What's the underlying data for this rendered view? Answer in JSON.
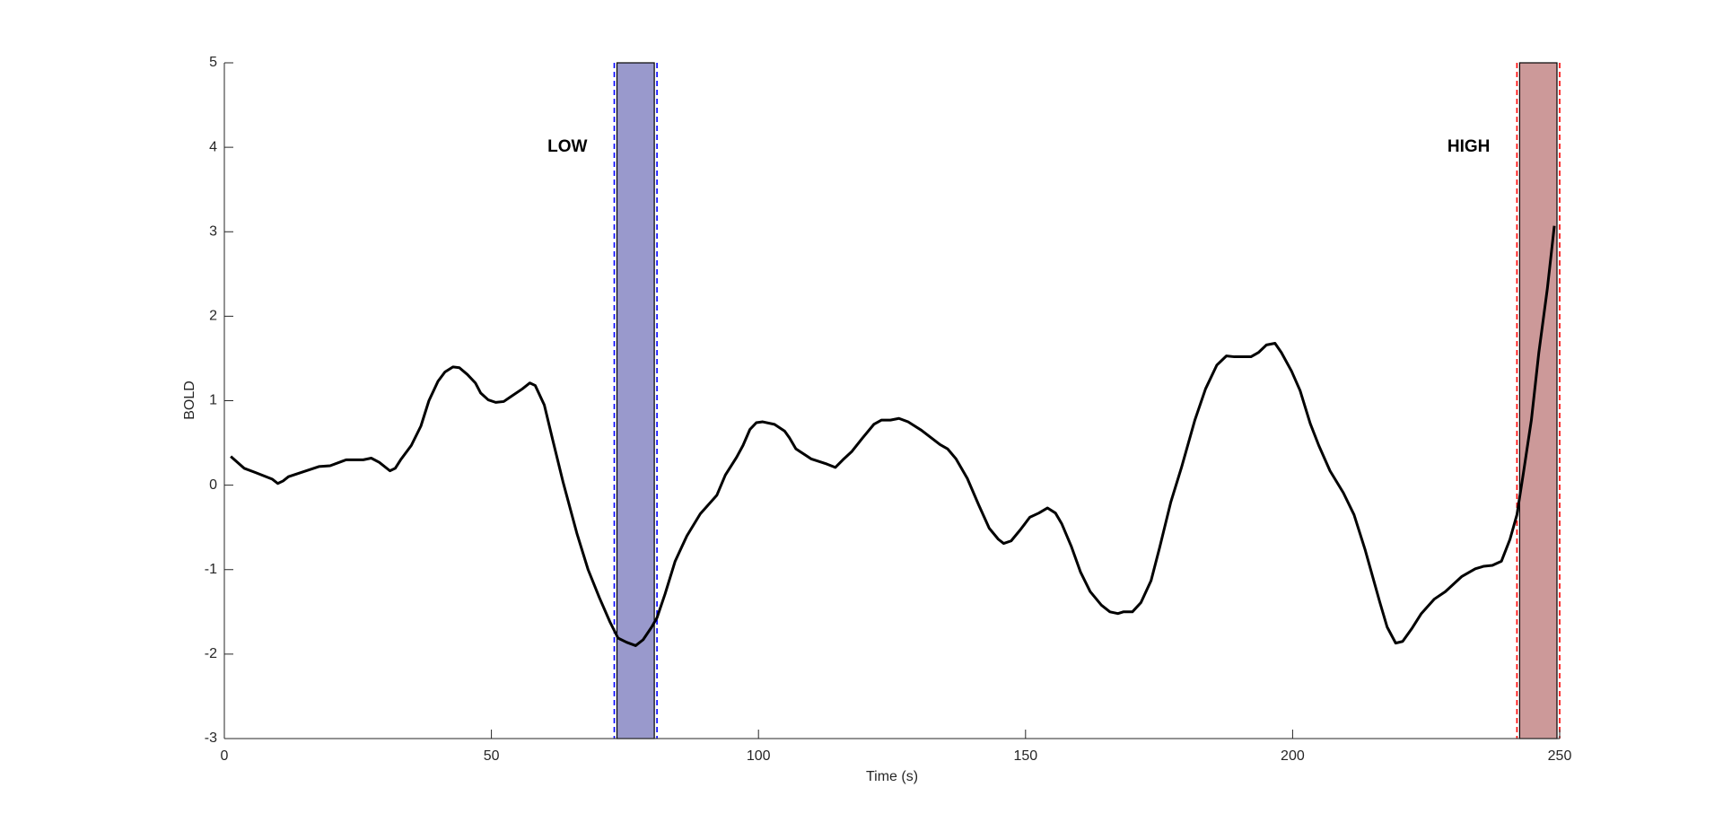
{
  "chart_data": {
    "type": "line",
    "xlabel": "Time (s)",
    "ylabel": "BOLD",
    "color": "#000000",
    "x": [
      1.2,
      3.7,
      5.8,
      9,
      10,
      11,
      12,
      17.7,
      19.8,
      22.8,
      26,
      27.5,
      29,
      31,
      32,
      33,
      35,
      36.8,
      38.3,
      40,
      41.3,
      42.8,
      44,
      45.5,
      47,
      48,
      49.4,
      50.8,
      52.3,
      53.7,
      55.8,
      57.2,
      58.2,
      59.9,
      61.5,
      63.4,
      66,
      68.1,
      70.2,
      72.2,
      73.7,
      75.3,
      77,
      78.4,
      80,
      81,
      82.5,
      84.4,
      86.6,
      89.1,
      92.2,
      93.8,
      95.9,
      97.1,
      98.4,
      99.6,
      100.8,
      103,
      104.9,
      105.8,
      107,
      109.9,
      112.8,
      114.4,
      115.8,
      117.5,
      119.5,
      121.6,
      123,
      124.7,
      126.3,
      128,
      130.5,
      134,
      135.4,
      137,
      139.1,
      141.2,
      143.2,
      144.9,
      145.9,
      147.3,
      149,
      150.8,
      152.5,
      154.1,
      155.6,
      156.8,
      158.6,
      160.3,
      162.1,
      164.2,
      165.8,
      167.3,
      168.3,
      170,
      171.6,
      173.5,
      175.1,
      177.2,
      179.2,
      181.7,
      183.7,
      185.8,
      187.6,
      189.1,
      192.2,
      193.6,
      195.1,
      196.7,
      197.9,
      199.8,
      201.4,
      203.3,
      204.9,
      207,
      209.5,
      211.5,
      213.6,
      216.3,
      217.7,
      219.3,
      220.6,
      222.4,
      224.1,
      226.5,
      228.6,
      231.7,
      234.2,
      235.8,
      237.4,
      239.1,
      240.7,
      242,
      243.2,
      244.7,
      246.1,
      247.7,
      249
    ],
    "values": [
      0.34,
      0.2,
      0.15,
      0.07,
      0.02,
      0.05,
      0.1,
      0.22,
      0.23,
      0.3,
      0.3,
      0.32,
      0.27,
      0.17,
      0.2,
      0.3,
      0.47,
      0.7,
      1.0,
      1.23,
      1.34,
      1.4,
      1.39,
      1.31,
      1.21,
      1.09,
      1.01,
      0.98,
      0.99,
      1.05,
      1.14,
      1.21,
      1.18,
      0.95,
      0.53,
      0.04,
      -0.57,
      -1.0,
      -1.33,
      -1.62,
      -1.81,
      -1.86,
      -1.9,
      -1.83,
      -1.68,
      -1.57,
      -1.29,
      -0.9,
      -0.6,
      -0.34,
      -0.12,
      0.12,
      0.33,
      0.47,
      0.66,
      0.74,
      0.75,
      0.72,
      0.64,
      0.56,
      0.43,
      0.31,
      0.25,
      0.21,
      0.3,
      0.4,
      0.56,
      0.72,
      0.77,
      0.77,
      0.79,
      0.75,
      0.65,
      0.48,
      0.43,
      0.31,
      0.08,
      -0.23,
      -0.51,
      -0.64,
      -0.69,
      -0.66,
      -0.53,
      -0.38,
      -0.33,
      -0.27,
      -0.33,
      -0.46,
      -0.73,
      -1.03,
      -1.26,
      -1.42,
      -1.5,
      -1.52,
      -1.5,
      -1.5,
      -1.39,
      -1.13,
      -0.74,
      -0.2,
      0.21,
      0.77,
      1.14,
      1.42,
      1.53,
      1.52,
      1.52,
      1.57,
      1.66,
      1.68,
      1.57,
      1.35,
      1.12,
      0.73,
      0.47,
      0.17,
      -0.09,
      -0.35,
      -0.77,
      -1.38,
      -1.68,
      -1.87,
      -1.85,
      -1.69,
      -1.52,
      -1.35,
      -1.26,
      -1.08,
      -0.99,
      -0.96,
      -0.95,
      -0.9,
      -0.64,
      -0.35,
      0.14,
      0.77,
      1.57,
      2.33,
      3.07
    ],
    "regions": [
      {
        "label": "LOW",
        "start": 73,
        "end": 81,
        "color": "#9999cc",
        "edge_color": "#0000ff"
      },
      {
        "label": "HIGH",
        "start": 242,
        "end": 250,
        "color": "#cc9999",
        "edge_color": "#ff0000"
      }
    ],
    "xlim": [
      0,
      250
    ],
    "xticks": [
      0,
      50,
      100,
      150,
      200,
      250
    ],
    "ylim": [
      -3,
      5
    ],
    "yticks": [
      -3,
      -2,
      -1,
      0,
      1,
      2,
      3,
      4,
      5
    ]
  }
}
